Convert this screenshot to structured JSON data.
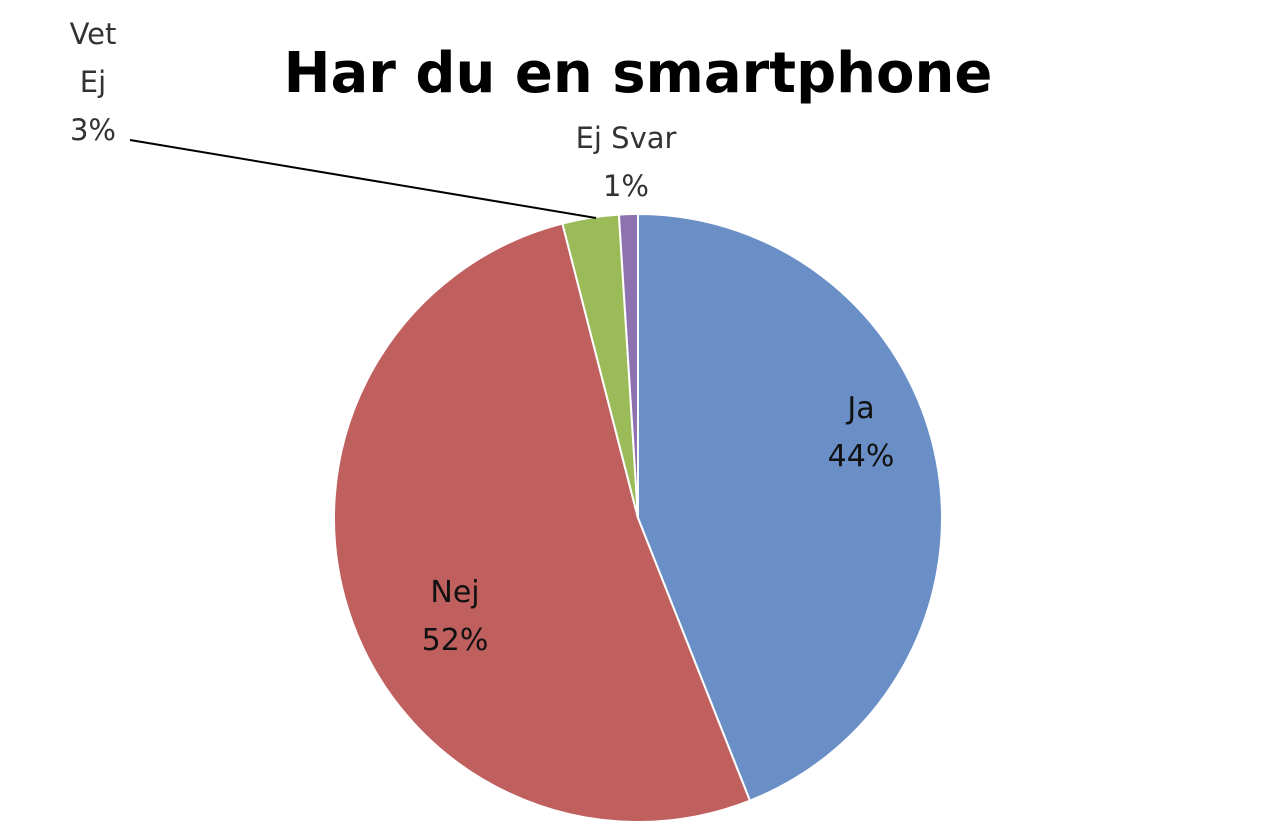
{
  "chart_data": {
    "type": "pie",
    "title": "Har du en smartphone",
    "start_angle_deg": 0,
    "direction": "clockwise",
    "slices": [
      {
        "label": "Ja",
        "label_lines": [
          "Ja"
        ],
        "value": 44,
        "display": "44%",
        "color": "#6a8fc7"
      },
      {
        "label": "Nej",
        "label_lines": [
          "Nej"
        ],
        "value": 52,
        "display": "52%",
        "color": "#c0605e"
      },
      {
        "label": "Vet Ej",
        "label_lines": [
          "Vet",
          "Ej"
        ],
        "value": 3,
        "display": "3%",
        "color": "#9bbb59"
      },
      {
        "label": "Ej Svar",
        "label_lines": [
          "Ej Svar"
        ],
        "value": 1,
        "display": "1%",
        "color": "#8e72b0"
      }
    ]
  }
}
